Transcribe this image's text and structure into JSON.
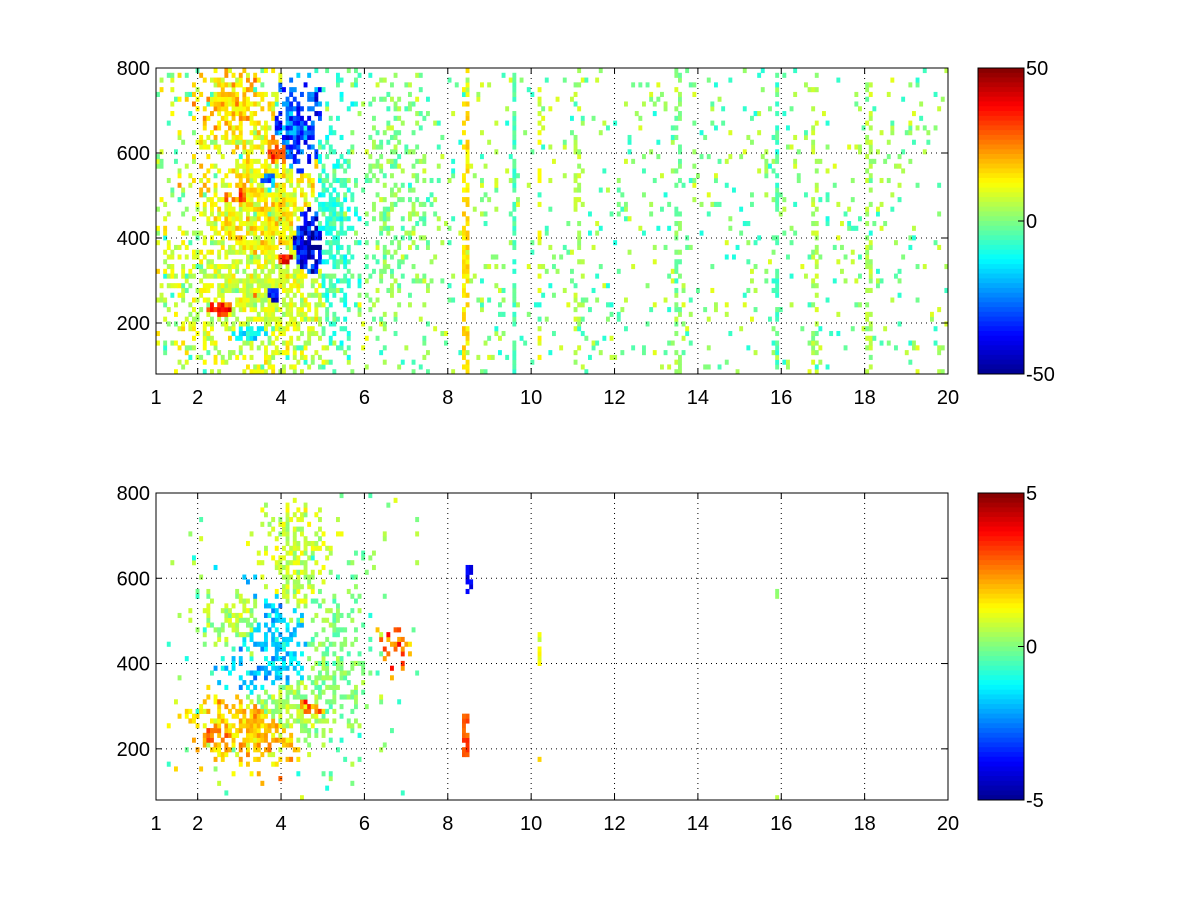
{
  "colormap": [
    "#00008f",
    "#0000ff",
    "#0080ff",
    "#00ffff",
    "#80ff80",
    "#ffff00",
    "#ff8000",
    "#ff0000",
    "#800000"
  ],
  "chart_data": [
    {
      "type": "heatmap",
      "title": "",
      "xlabel": "",
      "ylabel": "",
      "xlim": [
        1,
        20
      ],
      "ylim": [
        80,
        800
      ],
      "xticks": [
        1,
        2,
        4,
        6,
        8,
        10,
        12,
        14,
        16,
        18,
        20
      ],
      "xtick_labels": [
        "1",
        "2",
        "4",
        "6",
        "8",
        "10",
        "12",
        "14",
        "16",
        "18",
        "20"
      ],
      "yticks": [
        200,
        400,
        600,
        800
      ],
      "ytick_labels": [
        "200",
        "400",
        "600",
        "800"
      ],
      "grid": true,
      "grid_style": "dotted",
      "colorbar": {
        "range": [
          -50,
          50
        ],
        "ticks": [
          50,
          0,
          -50
        ],
        "tick_labels": [
          "50",
          "0",
          "-50"
        ]
      },
      "features": [
        {
          "x": 3.8,
          "y": 270,
          "sx": 0.5,
          "sy": 50,
          "value": -45,
          "density": 0.95
        },
        {
          "x": 4.6,
          "y": 380,
          "sx": 0.35,
          "sy": 80,
          "value": -45,
          "density": 0.95
        },
        {
          "x": 4.3,
          "y": 640,
          "sx": 0.4,
          "sy": 80,
          "value": -35,
          "density": 0.9
        },
        {
          "x": 3.7,
          "y": 530,
          "sx": 0.3,
          "sy": 40,
          "value": -25,
          "density": 0.8
        },
        {
          "x": 3.3,
          "y": 180,
          "sx": 0.5,
          "sy": 25,
          "value": -20,
          "density": 0.7
        },
        {
          "x": 2.6,
          "y": 235,
          "sx": 0.4,
          "sy": 20,
          "value": 40,
          "density": 0.95
        },
        {
          "x": 3.4,
          "y": 270,
          "sx": 0.35,
          "sy": 30,
          "value": 40,
          "density": 0.9
        },
        {
          "x": 4.1,
          "y": 350,
          "sx": 0.3,
          "sy": 30,
          "value": 40,
          "density": 0.85
        },
        {
          "x": 3.0,
          "y": 500,
          "sx": 0.4,
          "sy": 30,
          "value": 30,
          "density": 0.8
        },
        {
          "x": 3.9,
          "y": 600,
          "sx": 0.3,
          "sy": 40,
          "value": 30,
          "density": 0.8
        },
        {
          "x": 3.5,
          "y": 430,
          "sx": 1.0,
          "sy": 200,
          "value": 15,
          "density": 0.85
        },
        {
          "x": 2.8,
          "y": 720,
          "sx": 0.5,
          "sy": 60,
          "value": 20,
          "density": 0.8
        },
        {
          "x": 3.5,
          "y": 300,
          "sx": 1.3,
          "sy": 160,
          "value": 10,
          "density": 0.75
        },
        {
          "x": 5.3,
          "y": 420,
          "sx": 0.35,
          "sy": 180,
          "value": -8,
          "density": 0.6
        },
        {
          "x": 6.7,
          "y": 500,
          "sx": 0.5,
          "sy": 180,
          "value": 0,
          "density": 0.35
        }
      ],
      "columns": [
        {
          "x": 8.4,
          "value": 15,
          "density": 0.6
        },
        {
          "x": 9.6,
          "value": -5,
          "density": 0.7
        },
        {
          "x": 10.2,
          "value": 10,
          "density": 0.4
        },
        {
          "x": 11.1,
          "value": 5,
          "density": 0.3
        },
        {
          "x": 13.5,
          "value": 0,
          "density": 0.4
        },
        {
          "x": 15.9,
          "value": -5,
          "density": 0.5
        },
        {
          "x": 16.8,
          "value": 5,
          "density": 0.4
        },
        {
          "x": 18.1,
          "value": 5,
          "density": 0.4
        }
      ],
      "background": {
        "x_range": [
          1,
          20
        ],
        "density": 0.07,
        "values": [
          -10,
          10
        ]
      }
    },
    {
      "type": "heatmap",
      "title": "",
      "xlabel": "",
      "ylabel": "",
      "xlim": [
        1,
        20
      ],
      "ylim": [
        80,
        800
      ],
      "xticks": [
        1,
        2,
        4,
        6,
        8,
        10,
        12,
        14,
        16,
        18,
        20
      ],
      "xtick_labels": [
        "1",
        "2",
        "4",
        "6",
        "8",
        "10",
        "12",
        "14",
        "16",
        "18",
        "20"
      ],
      "yticks": [
        200,
        400,
        600,
        800
      ],
      "ytick_labels": [
        "200",
        "400",
        "600",
        "800"
      ],
      "grid": true,
      "grid_style": "dotted",
      "colorbar": {
        "range": [
          -5,
          5
        ],
        "ticks": [
          5,
          0,
          -5
        ],
        "tick_labels": [
          "5",
          "0",
          "-5"
        ]
      },
      "features": [
        {
          "x": 3.3,
          "y": 250,
          "sx": 0.9,
          "sy": 50,
          "value": 2,
          "density": 0.85
        },
        {
          "x": 4.2,
          "y": 300,
          "sx": 0.8,
          "sy": 60,
          "value": 0.5,
          "density": 0.8
        },
        {
          "x": 3.0,
          "y": 500,
          "sx": 0.5,
          "sy": 40,
          "value": 0.5,
          "density": 0.7
        },
        {
          "x": 4.3,
          "y": 650,
          "sx": 0.5,
          "sy": 80,
          "value": 0.8,
          "density": 0.75
        },
        {
          "x": 3.8,
          "y": 420,
          "sx": 0.7,
          "sy": 100,
          "value": -2,
          "density": 0.55
        },
        {
          "x": 5.2,
          "y": 400,
          "sx": 0.5,
          "sy": 120,
          "value": 0,
          "density": 0.55
        },
        {
          "x": 2.5,
          "y": 230,
          "sx": 0.35,
          "sy": 20,
          "value": 3,
          "density": 0.7
        },
        {
          "x": 4.6,
          "y": 300,
          "sx": 0.5,
          "sy": 30,
          "value": 3,
          "density": 0.6
        },
        {
          "x": 6.7,
          "y": 430,
          "sx": 0.25,
          "sy": 40,
          "value": 3,
          "density": 0.4
        }
      ],
      "columns": [
        {
          "x": 8.4,
          "y": [
            180,
            280
          ],
          "value": 3,
          "density": 0.9
        },
        {
          "x": 8.5,
          "y": [
            560,
            630
          ],
          "value": -4,
          "density": 0.8
        },
        {
          "x": 10.2,
          "y": [
            390,
            470
          ],
          "value": 1,
          "density": 0.6
        },
        {
          "x": 10.2,
          "y": [
            160,
            185
          ],
          "value": 2,
          "density": 0.6
        },
        {
          "x": 15.9,
          "y": [
            80,
            100
          ],
          "value": 0.5,
          "density": 0.5
        },
        {
          "x": 15.9,
          "y": [
            210,
            225
          ],
          "value": 0.5,
          "density": 0.5
        },
        {
          "x": 15.9,
          "y": [
            555,
            570
          ],
          "value": 0.5,
          "density": 0.5
        }
      ],
      "background": {
        "x_range": [
          1.3,
          7.5
        ],
        "density": 0.02,
        "values": [
          -1,
          1
        ]
      }
    }
  ]
}
